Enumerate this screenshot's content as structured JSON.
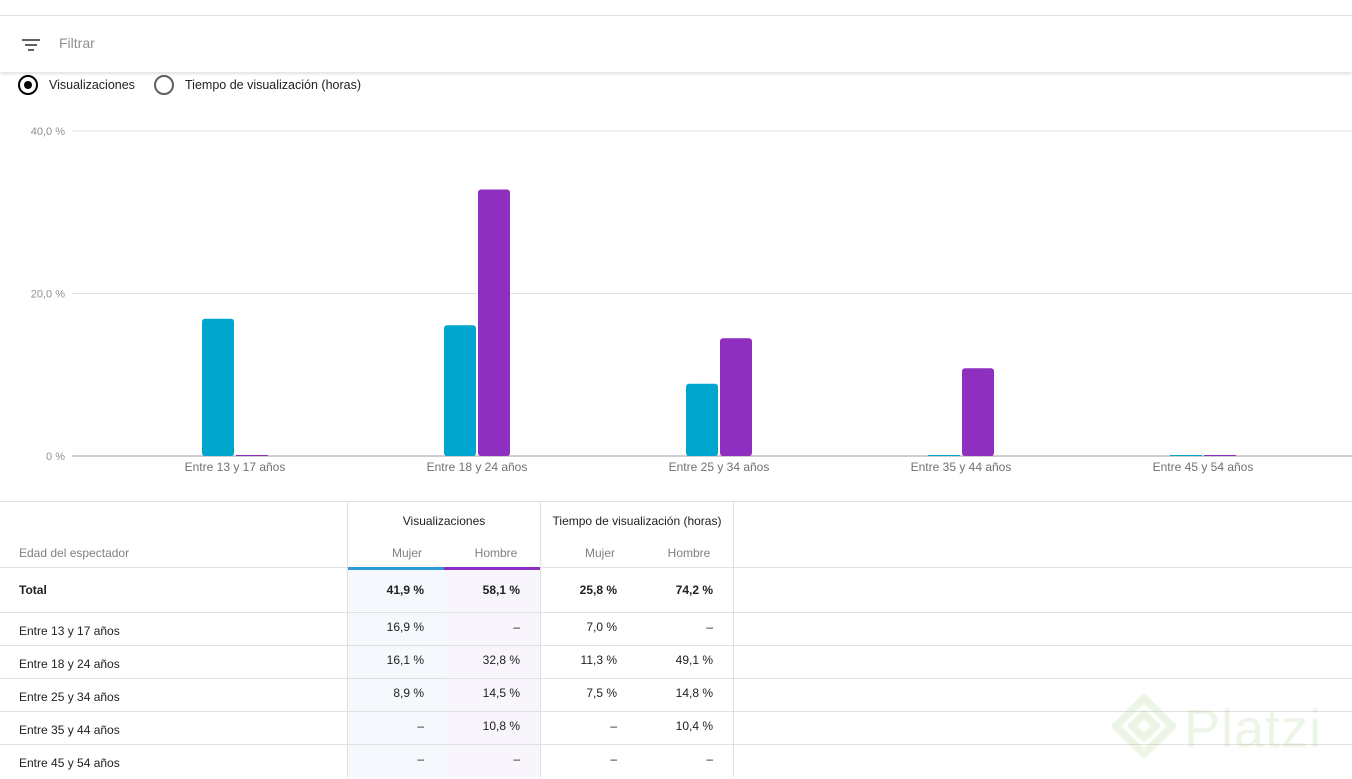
{
  "filter": {
    "placeholder": "Filtrar",
    "icon": "filter-list-icon"
  },
  "metric_options": [
    {
      "label": "Visualizaciones",
      "selected": true
    },
    {
      "label": "Tiempo de visualización (horas)",
      "selected": false
    }
  ],
  "chart_data": {
    "type": "bar",
    "categories": [
      "Entre 13 y 17 años",
      "Entre 18 y 24 años",
      "Entre 25 y 34 años",
      "Entre 35 y 44 años",
      "Entre 45 y 54 años"
    ],
    "series": [
      {
        "name": "Mujer",
        "color": "#00a6ce",
        "values": [
          16.9,
          16.1,
          8.9,
          0,
          0
        ]
      },
      {
        "name": "Hombre",
        "color": "#8f2fc0",
        "values": [
          0,
          32.8,
          14.5,
          10.8,
          0
        ]
      }
    ],
    "y_ticks": [
      "0 %",
      "20,0 %",
      "40,0 %"
    ],
    "ylim": [
      0,
      40
    ],
    "grid": true
  },
  "table": {
    "row_label_header": "Edad del espectador",
    "groups": [
      {
        "title": "Visualizaciones",
        "sub": [
          "Mujer",
          "Hombre"
        ]
      },
      {
        "title": "Tiempo de visualización (horas)",
        "sub": [
          "Mujer",
          "Hombre"
        ]
      }
    ],
    "rows": [
      {
        "name": "Total",
        "cells": [
          "41,9 %",
          "58,1 %",
          "25,8 %",
          "74,2 %"
        ]
      },
      {
        "name": "Entre 13 y 17 años",
        "cells": [
          "16,9 %",
          "–",
          "7,0 %",
          "–"
        ]
      },
      {
        "name": "Entre 18 y 24 años",
        "cells": [
          "16,1 %",
          "32,8 %",
          "11,3 %",
          "49,1 %"
        ]
      },
      {
        "name": "Entre 25 y 34 años",
        "cells": [
          "8,9 %",
          "14,5 %",
          "7,5 %",
          "14,8 %"
        ]
      },
      {
        "name": "Entre 35 y 44 años",
        "cells": [
          "–",
          "10,8 %",
          "–",
          "10,4 %"
        ]
      },
      {
        "name": "Entre 45 y 54 años",
        "cells": [
          "–",
          "–",
          "–",
          "–"
        ]
      }
    ]
  },
  "watermark": {
    "text": "Platzi"
  }
}
